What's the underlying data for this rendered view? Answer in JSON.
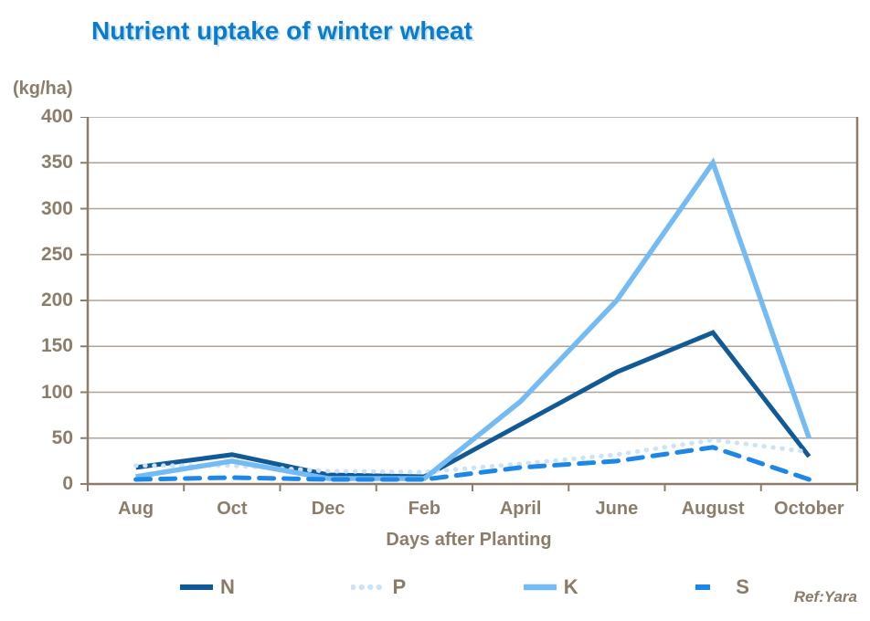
{
  "title": "Nutrient uptake of winter wheat",
  "ref": "Ref:Yara",
  "colors": {
    "title": "#0A7CCB",
    "axis_text": "#8C7D6B",
    "grid": "#B0A294",
    "axis": "#8C7D6B",
    "background": "#FFFFFF"
  },
  "chart_data": {
    "type": "line",
    "title": "Nutrient uptake of winter wheat",
    "xlabel": "Days after Planting",
    "ylabel": "(kg/ha)",
    "ylim": [
      0,
      400
    ],
    "ytick_step": 50,
    "grid": true,
    "legend_position": "bottom",
    "categories": [
      "Aug",
      "Oct",
      "Dec",
      "Feb",
      "April",
      "June",
      "August",
      "October"
    ],
    "series": [
      {
        "name": "N",
        "style": "solid",
        "color": "#125A96",
        "width": 5,
        "values": [
          18,
          32,
          10,
          8,
          65,
          122,
          165,
          30
        ]
      },
      {
        "name": "P",
        "style": "dotted",
        "color": "#CBE2F8",
        "width": 5,
        "values": [
          20,
          20,
          14,
          13,
          22,
          32,
          48,
          35
        ]
      },
      {
        "name": "K",
        "style": "solid",
        "color": "#74BBF3",
        "width": 5.5,
        "values": [
          8,
          25,
          6,
          6,
          90,
          200,
          350,
          50
        ]
      },
      {
        "name": "S",
        "style": "dashed",
        "color": "#1C87E6",
        "width": 5,
        "values": [
          5,
          7,
          5,
          5,
          18,
          25,
          40,
          5
        ]
      }
    ]
  }
}
